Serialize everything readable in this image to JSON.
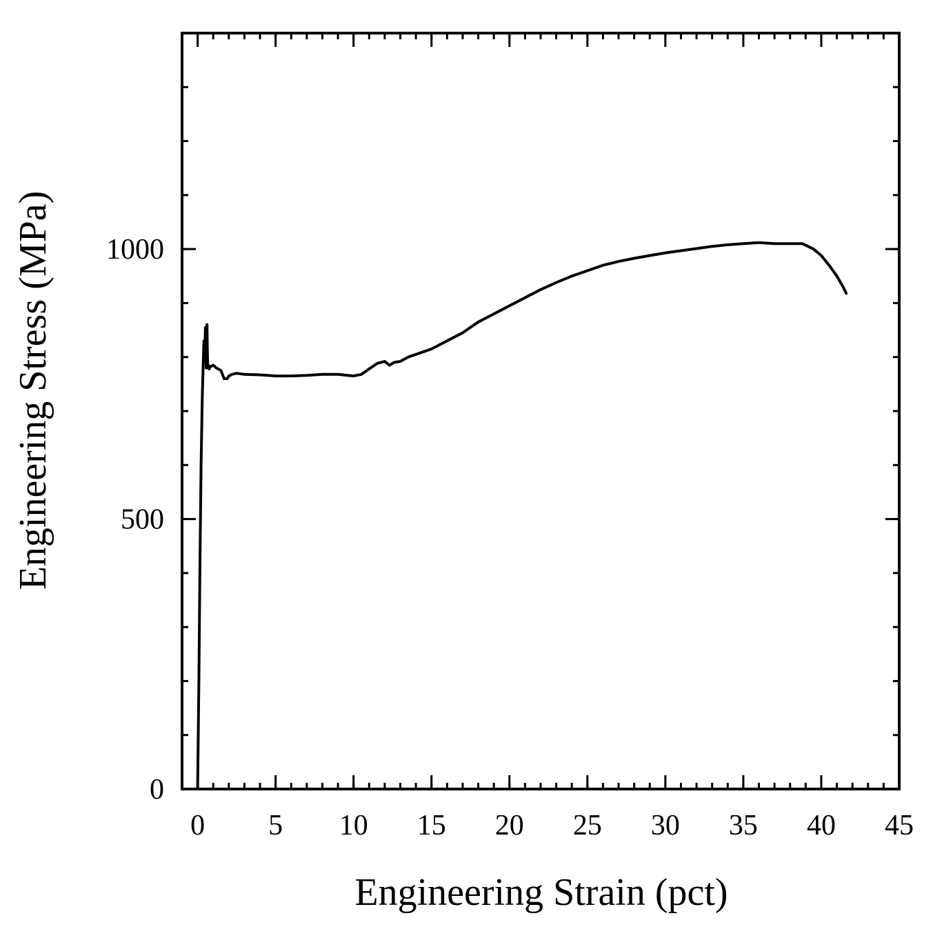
{
  "chart_data": {
    "type": "line",
    "title": "",
    "xlabel": "Engineering Strain (pct)",
    "ylabel": "Engineering Stress (MPa)",
    "xlim": [
      -1,
      45
    ],
    "ylim": [
      0,
      1400
    ],
    "x_ticks": [
      0,
      5,
      10,
      15,
      20,
      25,
      30,
      35,
      40,
      45
    ],
    "x_minor_step": 1,
    "y_ticks": [
      0,
      500,
      1000
    ],
    "y_minor_step": 100,
    "grid": false,
    "legend": "none",
    "colors": {
      "line": "#000000",
      "axis": "#000000"
    },
    "series": [
      {
        "name": "Engineering Stress",
        "x": [
          0.0,
          0.08,
          0.15,
          0.22,
          0.3,
          0.4,
          0.45,
          0.5,
          0.55,
          0.6,
          0.62,
          0.65,
          0.7,
          0.75,
          0.8,
          1.0,
          1.2,
          1.5,
          1.7,
          1.9,
          2.0,
          2.2,
          2.5,
          3.0,
          4.0,
          5.0,
          6.0,
          7.0,
          8.0,
          9.0,
          10.0,
          10.5,
          11.0,
          11.5,
          12.0,
          12.3,
          12.6,
          13.0,
          13.5,
          14.0,
          15.0,
          16.0,
          17.0,
          18.0,
          19.0,
          20.0,
          21.0,
          22.0,
          23.0,
          24.0,
          25.0,
          26.0,
          27.0,
          28.0,
          29.0,
          30.0,
          31.0,
          32.0,
          33.0,
          34.0,
          35.0,
          36.0,
          37.0,
          38.0,
          38.8,
          39.5,
          40.0,
          40.5,
          41.0,
          41.4,
          41.6
        ],
        "y": [
          0,
          200,
          420,
          600,
          730,
          830,
          800,
          855,
          780,
          860,
          820,
          780,
          785,
          778,
          782,
          785,
          780,
          775,
          760,
          760,
          765,
          768,
          770,
          768,
          767,
          765,
          765,
          766,
          768,
          768,
          765,
          768,
          778,
          788,
          792,
          785,
          790,
          792,
          800,
          805,
          815,
          830,
          845,
          865,
          880,
          895,
          910,
          925,
          938,
          950,
          960,
          970,
          977,
          983,
          988,
          993,
          997,
          1001,
          1005,
          1008,
          1010,
          1012,
          1010,
          1010,
          1010,
          1000,
          988,
          970,
          950,
          930,
          918
        ]
      }
    ]
  }
}
